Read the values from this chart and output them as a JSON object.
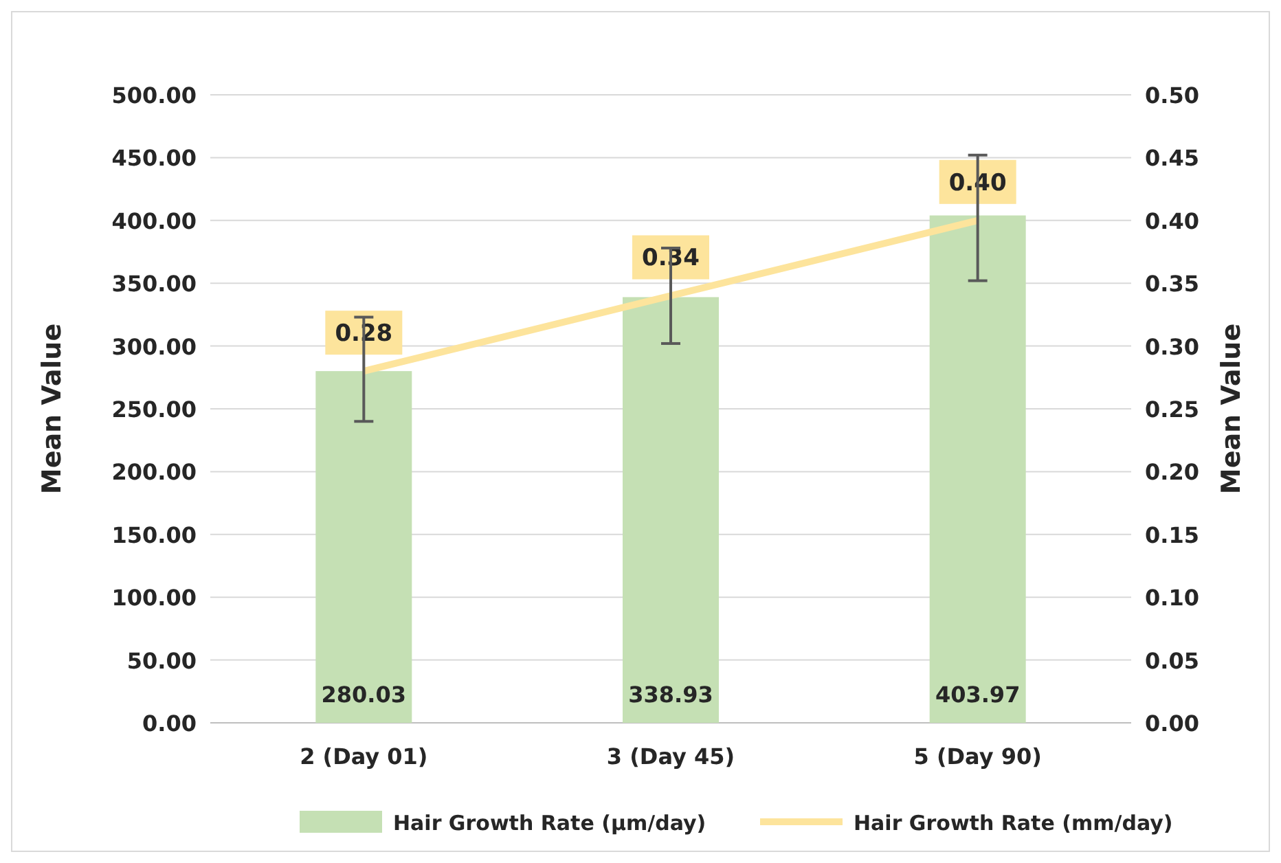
{
  "chart_data": {
    "type": "bar",
    "categories": [
      "2 (Day 01)",
      "3 (Day 45)",
      "5 (Day 90)"
    ],
    "series": [
      {
        "name": "Hair Growth Rate (µm/day)",
        "color": "#c5e0b4",
        "values": [
          280.03,
          338.93,
          403.97
        ],
        "errors": [
          [
            240,
            323
          ],
          [
            302,
            378
          ],
          [
            352,
            452
          ]
        ]
      },
      {
        "name": "Hair Growth Rate (mm/day)",
        "type": "line",
        "axis": "y2",
        "color": "#fde49c",
        "values": [
          0.28,
          0.34,
          0.4
        ],
        "value_labels": [
          "0.28",
          "0.34",
          "0.40"
        ]
      }
    ],
    "ylabel": "Mean Value",
    "y2label": "Mean Value",
    "ylim": [
      0,
      500
    ],
    "yticks": [
      {
        "value": 0,
        "label": "0.00"
      },
      {
        "value": 50,
        "label": "50.00"
      },
      {
        "value": 100,
        "label": "100.00"
      },
      {
        "value": 150,
        "label": "150.00"
      },
      {
        "value": 200,
        "label": "200.00"
      },
      {
        "value": 250,
        "label": "250.00"
      },
      {
        "value": 300,
        "label": "300.00"
      },
      {
        "value": 350,
        "label": "350.00"
      },
      {
        "value": 400,
        "label": "400.00"
      },
      {
        "value": 450,
        "label": "450.00"
      },
      {
        "value": 500,
        "label": "500.00"
      }
    ],
    "y2lim": [
      0,
      0.5
    ],
    "y2ticks": [
      {
        "value": 0,
        "label": "0.00"
      },
      {
        "value": 0.05,
        "label": "0.05"
      },
      {
        "value": 0.1,
        "label": "0.10"
      },
      {
        "value": 0.15,
        "label": "0.15"
      },
      {
        "value": 0.2,
        "label": "0.20"
      },
      {
        "value": 0.25,
        "label": "0.25"
      },
      {
        "value": 0.3,
        "label": "0.30"
      },
      {
        "value": 0.35,
        "label": "0.35"
      },
      {
        "value": 0.4,
        "label": "0.40"
      },
      {
        "value": 0.45,
        "label": "0.45"
      },
      {
        "value": 0.5,
        "label": "0.50"
      }
    ],
    "data_labels": true,
    "grid": "y",
    "legend": "bottom"
  }
}
